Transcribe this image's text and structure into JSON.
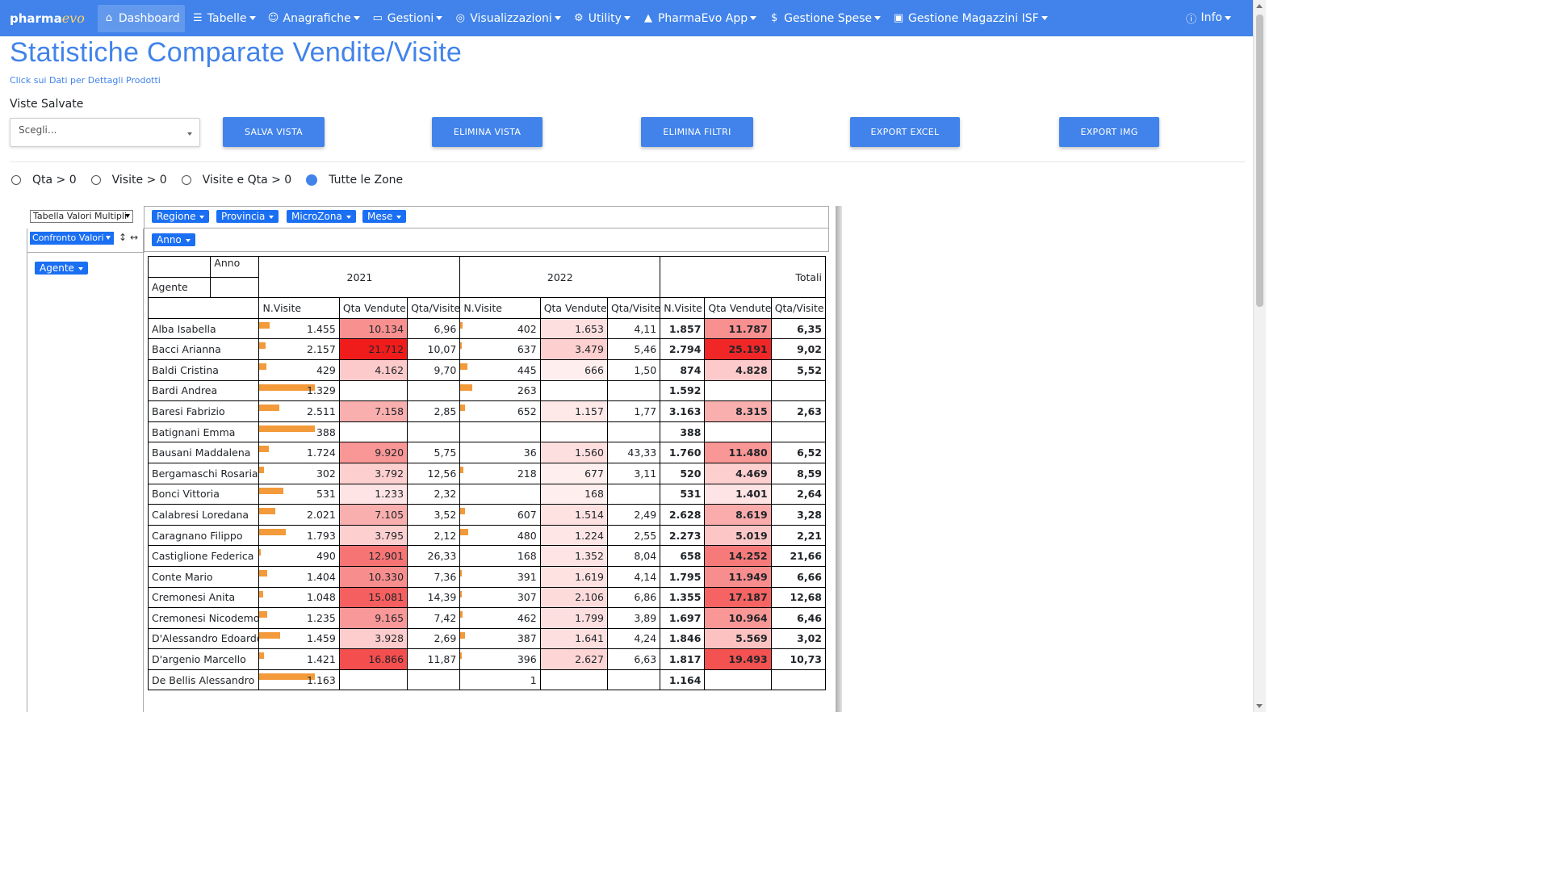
{
  "nav": {
    "brand_main": "pharma",
    "brand_accent": "evo",
    "items": [
      {
        "label": "Dashboard",
        "icon": "home-icon",
        "active": true,
        "caret": false
      },
      {
        "label": "Tabelle",
        "icon": "list-icon",
        "caret": true
      },
      {
        "label": "Anagrafiche",
        "icon": "users-icon",
        "caret": true
      },
      {
        "label": "Gestioni",
        "icon": "monitor-icon",
        "caret": true
      },
      {
        "label": "Visualizzazioni",
        "icon": "binoculars-icon",
        "caret": true
      },
      {
        "label": "Utility",
        "icon": "cogs-icon",
        "caret": true
      },
      {
        "label": "PharmaEvo App",
        "icon": "car-icon",
        "caret": true
      },
      {
        "label": "Gestione Spese",
        "icon": "dollar-icon",
        "caret": true
      },
      {
        "label": "Gestione Magazzini ISF",
        "icon": "warehouse-icon",
        "caret": true
      }
    ],
    "info_label": "Info"
  },
  "page": {
    "title": "Statistiche Comparate Vendite/Visite",
    "subtitle": "Click sui Dati per Dettagli Prodotti",
    "views_label": "Viste Salvate",
    "views_placeholder": "Scegli..."
  },
  "buttons": {
    "save": "SALVA VISTA",
    "delete": "ELIMINA VISTA",
    "clear_filters": "ELIMINA FILTRI",
    "export_excel": "EXPORT EXCEL",
    "export_img": "EXPORT IMG"
  },
  "radios": [
    {
      "label": "Qta > 0",
      "checked": false
    },
    {
      "label": "Visite > 0",
      "checked": false
    },
    {
      "label": "Visite e Qta > 0",
      "checked": false
    },
    {
      "label": "Tutte le Zone",
      "checked": true
    }
  ],
  "pivot": {
    "renderer": "Tabella Valori Multipli",
    "aggregator": "Confronto Valori",
    "filters": [
      "Regione",
      "Provincia",
      "MicroZona",
      "Mese"
    ],
    "col_attr": "Anno",
    "row_attr": "Agente",
    "header": {
      "anno": "Anno",
      "agente": "Agente",
      "years": [
        "2021",
        "2022"
      ],
      "totali": "Totali",
      "measures": [
        "N.Visite",
        "Qta Vendute",
        "Qta/Visite"
      ]
    },
    "rows": [
      {
        "name": "Alba Isabella",
        "v": [
          "1.455",
          "10.134",
          "6,96",
          "402",
          "1.653",
          "4,11",
          "1.857",
          "11.787",
          "6,35"
        ],
        "b1": 0.13,
        "b2": 0.03,
        "h": [
          0.45,
          0.07,
          0.45
        ]
      },
      {
        "name": "Bacci Arianna",
        "v": [
          "2.157",
          "21.712",
          "10,07",
          "637",
          "3.479",
          "5,46",
          "2.794",
          "25.191",
          "9,02"
        ],
        "b1": 0.08,
        "b2": 0.02,
        "h": [
          1.0,
          0.15,
          0.95
        ]
      },
      {
        "name": "Baldi Cristina",
        "v": [
          "429",
          "4.162",
          "9,70",
          "445",
          "666",
          "1,50",
          "874",
          "4.828",
          "5,52"
        ],
        "b1": 0.09,
        "b2": 0.09,
        "h": [
          0.17,
          0.0,
          0.17
        ]
      },
      {
        "name": "Bardi Andrea",
        "v": [
          "1.329",
          "",
          "",
          "263",
          "",
          "",
          "1.592",
          "",
          ""
        ],
        "b1": 0.7,
        "b2": 0.15,
        "h": [
          -1,
          -1,
          -1
        ]
      },
      {
        "name": "Baresi Fabrizio",
        "v": [
          "2.511",
          "7.158",
          "2,85",
          "652",
          "1.157",
          "1,77",
          "3.163",
          "8.315",
          "2,63"
        ],
        "b1": 0.25,
        "b2": 0.06,
        "h": [
          0.3,
          0.03,
          0.3
        ]
      },
      {
        "name": "Batignani Emma",
        "v": [
          "388",
          "",
          "",
          "",
          "",
          "",
          "388",
          "",
          ""
        ],
        "b1": 0.7,
        "b2": 0,
        "h": [
          -1,
          -1,
          -1
        ]
      },
      {
        "name": "Bausani Maddalena",
        "v": [
          "1.724",
          "9.920",
          "5,75",
          "36",
          "1.560",
          "43,33",
          "1.760",
          "11.480",
          "6,52"
        ],
        "b1": 0.12,
        "b2": 0,
        "h": [
          0.42,
          0.07,
          0.42
        ]
      },
      {
        "name": "Bergamaschi Rosaria",
        "v": [
          "302",
          "3.792",
          "12,56",
          "218",
          "677",
          "3,11",
          "520",
          "4.469",
          "8,59"
        ],
        "b1": 0.06,
        "b2": 0.04,
        "h": [
          0.15,
          0.0,
          0.15
        ]
      },
      {
        "name": "Bonci Vittoria",
        "v": [
          "531",
          "1.233",
          "2,32",
          "",
          "168",
          "",
          "531",
          "1.401",
          "2,64"
        ],
        "b1": 0.3,
        "b2": 0,
        "h": [
          0.05,
          0.0,
          0.05
        ]
      },
      {
        "name": "Calabresi Loredana",
        "v": [
          "2.021",
          "7.105",
          "3,52",
          "607",
          "1.514",
          "2,49",
          "2.628",
          "8.619",
          "3,28"
        ],
        "b1": 0.2,
        "b2": 0.06,
        "h": [
          0.3,
          0.06,
          0.32
        ]
      },
      {
        "name": "Caragnano Filippo",
        "v": [
          "1.793",
          "3.795",
          "2,12",
          "480",
          "1.224",
          "2,55",
          "2.273",
          "5.019",
          "2,21"
        ],
        "b1": 0.33,
        "b2": 0.1,
        "h": [
          0.15,
          0.04,
          0.19
        ]
      },
      {
        "name": "Castiglione Federica",
        "v": [
          "490",
          "12.901",
          "26,33",
          "168",
          "1.352",
          "8,04",
          "658",
          "14.252",
          "21,66"
        ],
        "b1": 0.02,
        "b2": 0.0,
        "h": [
          0.58,
          0.05,
          0.55
        ]
      },
      {
        "name": "Conte Mario",
        "v": [
          "1.404",
          "10.330",
          "7,36",
          "391",
          "1.619",
          "4,14",
          "1.795",
          "11.949",
          "6,66"
        ],
        "b1": 0.1,
        "b2": 0.02,
        "h": [
          0.46,
          0.06,
          0.46
        ]
      },
      {
        "name": "Cremonesi Anita",
        "v": [
          "1.048",
          "15.081",
          "14,39",
          "307",
          "2.106",
          "6,86",
          "1.355",
          "17.187",
          "12,68"
        ],
        "b1": 0.05,
        "b2": 0.02,
        "h": [
          0.68,
          0.09,
          0.66
        ]
      },
      {
        "name": "Cremonesi Nicodemo",
        "v": [
          "1.235",
          "9.165",
          "7,42",
          "462",
          "1.799",
          "3,89",
          "1.697",
          "10.964",
          "6,46"
        ],
        "b1": 0.1,
        "b2": 0.03,
        "h": [
          0.41,
          0.07,
          0.42
        ]
      },
      {
        "name": "D'Alessandro Edoardo",
        "v": [
          "1.459",
          "3.928",
          "2,69",
          "387",
          "1.641",
          "4,24",
          "1.846",
          "5.569",
          "3,02"
        ],
        "b1": 0.26,
        "b2": 0.06,
        "h": [
          0.16,
          0.07,
          0.21
        ]
      },
      {
        "name": "D'argenio Marcello",
        "v": [
          "1.421",
          "16.866",
          "11,87",
          "396",
          "2.627",
          "6,63",
          "1.817",
          "19.493",
          "10,73"
        ],
        "b1": 0.06,
        "b2": 0.02,
        "h": [
          0.76,
          0.12,
          0.75
        ]
      },
      {
        "name": "De Bellis Alessandro",
        "v": [
          "1.163",
          "",
          "",
          "1",
          "",
          "",
          "1.164",
          "",
          ""
        ],
        "b1": 0.7,
        "b2": 0,
        "h": [
          -1,
          -1,
          -1
        ]
      }
    ]
  },
  "colors": {
    "primary": "#4183ea",
    "chip": "#1b6ff2",
    "bar": "#f39a3a",
    "heat_max": "#f01c1c"
  }
}
